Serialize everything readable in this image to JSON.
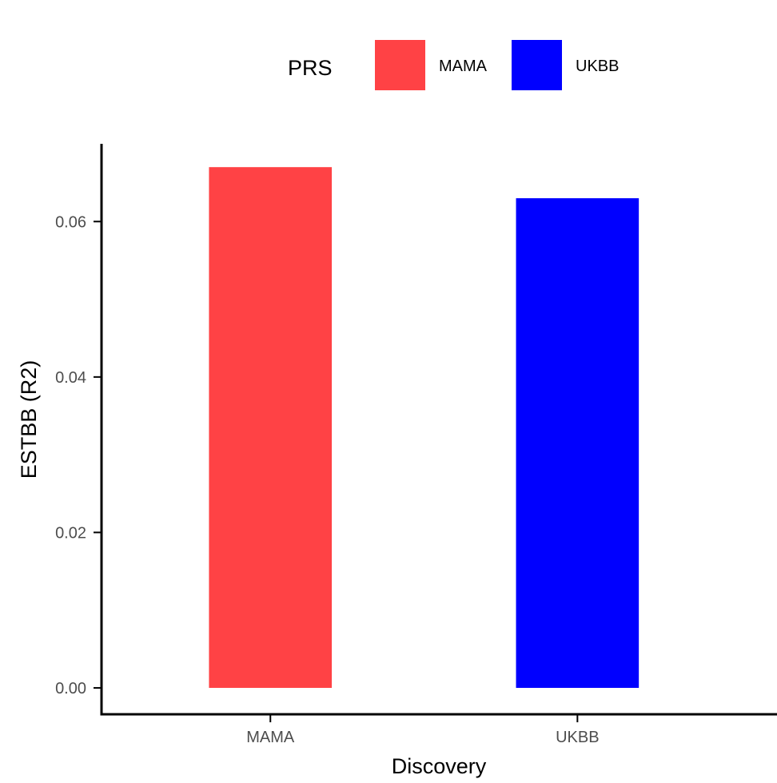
{
  "chart_data": {
    "type": "bar",
    "categories": [
      "MAMA",
      "UKBB"
    ],
    "values": [
      0.067,
      0.063
    ],
    "bar_colors": [
      "#FF4245",
      "#0000FF"
    ],
    "xlabel": "Discovery",
    "ylabel": "ESTBB (R2)",
    "ylim": [
      -0.0035,
      0.07
    ],
    "yticks": [
      0.0,
      0.02,
      0.04,
      0.06
    ],
    "ytick_labels": [
      "0.00",
      "0.02",
      "0.04",
      "0.06"
    ],
    "grid": false,
    "legend": {
      "title": "PRS",
      "position": "top",
      "entries": [
        {
          "label": "MAMA",
          "color": "#FF4245"
        },
        {
          "label": "UKBB",
          "color": "#0000FF"
        }
      ]
    }
  }
}
